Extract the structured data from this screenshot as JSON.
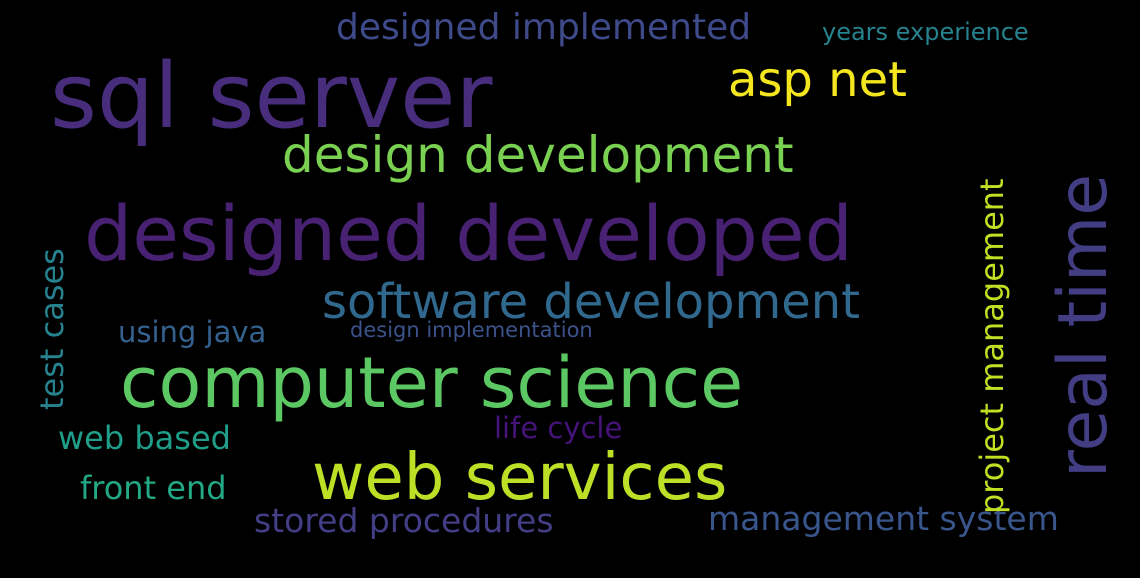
{
  "words": {
    "sql_server": {
      "text": "sql server",
      "color": "#472d7b"
    },
    "designed_developed": {
      "text": "designed developed",
      "color": "#482173"
    },
    "computer_science": {
      "text": "computer science",
      "color": "#5cc863"
    },
    "web_services": {
      "text": "web services",
      "color": "#bddf26"
    },
    "design_development": {
      "text": "design development",
      "color": "#7ad151"
    },
    "software_development": {
      "text": "software development",
      "color": "#31688e"
    },
    "asp_net": {
      "text": "asp net",
      "color": "#f3e51e"
    },
    "designed_implemented": {
      "text": "designed implemented",
      "color": "#3e4a89"
    },
    "years_experience": {
      "text": "years experience",
      "color": "#26828e"
    },
    "management_system": {
      "text": "management system",
      "color": "#39568c"
    },
    "stored_procedures": {
      "text": "stored procedures",
      "color": "#433e85"
    },
    "front_end": {
      "text": "front end",
      "color": "#22a884"
    },
    "web_based": {
      "text": "web based",
      "color": "#1f9e89"
    },
    "using_java": {
      "text": "using java",
      "color": "#34618d"
    },
    "life_cycle": {
      "text": "life cycle",
      "color": "#46137a"
    },
    "design_implementation": {
      "text": "design implementation",
      "color": "#3b528b"
    },
    "real_time": {
      "text": "real time",
      "color": "#433d84"
    },
    "project_management": {
      "text": "project management",
      "color": "#c2df23"
    },
    "test_cases": {
      "text": "test cases",
      "color": "#26828e"
    }
  }
}
